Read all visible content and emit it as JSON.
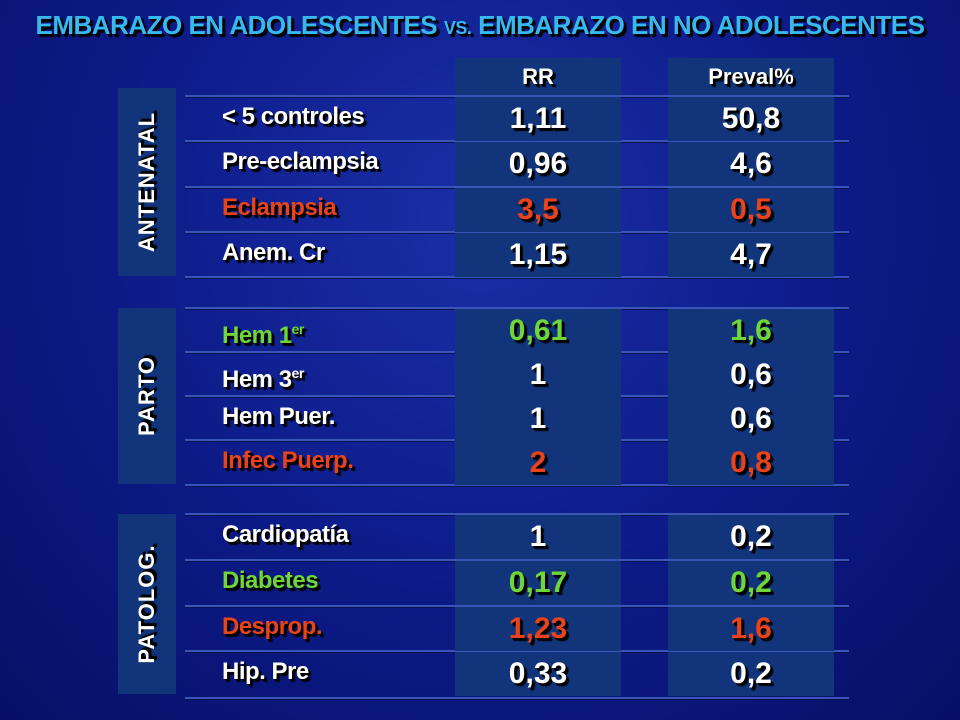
{
  "title": {
    "part1": "EMBARAZO EN ADOLESCENTES ",
    "vs": "VS.",
    "part2": " EMBARAZO EN NO ADOLESCENTES"
  },
  "columns": {
    "rr": "RR",
    "preval": "Preval%"
  },
  "sections": {
    "antenatal": {
      "label": "ANTENATAL",
      "rows": [
        {
          "label": "< 5 controles",
          "rr": "1,11",
          "preval": "50,8",
          "color": "white"
        },
        {
          "label": "Pre-eclampsia",
          "rr": "0,96",
          "preval": "4,6",
          "color": "white"
        },
        {
          "label": "Eclampsia",
          "rr": "3,5",
          "preval": "0,5",
          "color": "red"
        },
        {
          "label": "Anem. Cr",
          "rr": "1,15",
          "preval": "4,7",
          "color": "white"
        }
      ]
    },
    "parto": {
      "label": "PARTO",
      "rows": [
        {
          "label": "Hem 1",
          "sup": "er",
          "rr": "0,61",
          "preval": "1,6",
          "color": "green"
        },
        {
          "label": "Hem 3",
          "sup": "er",
          "rr": "1",
          "preval": "0,6",
          "color": "white"
        },
        {
          "label": "Hem Puer.",
          "rr": "1",
          "preval": "0,6",
          "color": "white"
        },
        {
          "label": "Infec Puerp.",
          "rr": "2",
          "preval": "0,8",
          "color": "red"
        }
      ]
    },
    "patolog": {
      "label": "PATOLOG.",
      "rows": [
        {
          "label": "Cardiopatía",
          "rr": "1",
          "preval": "0,2",
          "color": "white"
        },
        {
          "label": "Diabetes",
          "rr": "0,17",
          "preval": "0,2",
          "color": "green"
        },
        {
          "label": "Desprop.",
          "rr": "1,23",
          "preval": "1,6",
          "color": "red"
        },
        {
          "label": "Hip. Pre",
          "rr": "0,33",
          "preval": "0,2",
          "color": "white"
        }
      ]
    }
  },
  "colors": {
    "title": "#38b8f0",
    "white": "#ffffff",
    "red": "#e8431a",
    "green": "#6ed63a",
    "cell_bg": "#12347a"
  }
}
